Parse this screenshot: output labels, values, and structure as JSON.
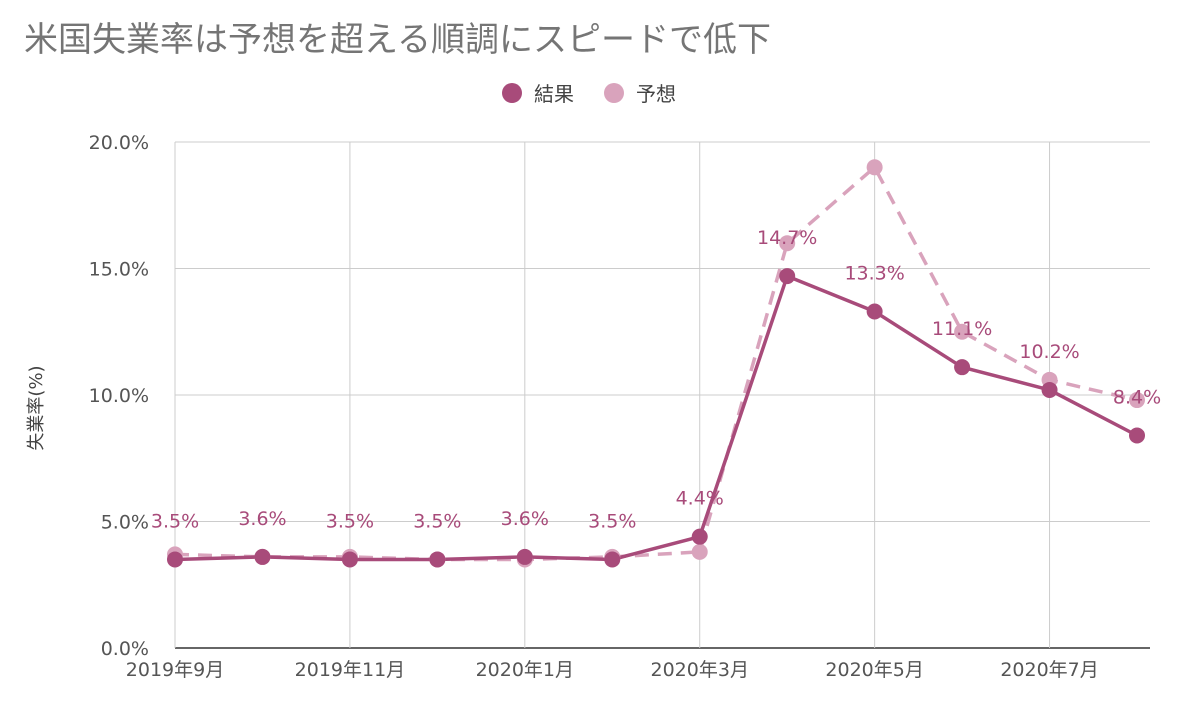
{
  "chart_data": {
    "type": "line",
    "title": "米国失業率は予想を超える順調にスピードで低下",
    "ylabel": "失業率(%)",
    "xlabel": "",
    "ylim": [
      0,
      20
    ],
    "y_ticks": [
      "0.0%",
      "5.0%",
      "10.0%",
      "15.0%",
      "20.0%"
    ],
    "y_tick_values": [
      0,
      5,
      10,
      15,
      20
    ],
    "categories": [
      "2019年9月",
      "2019年10月",
      "2019年11月",
      "2019年12月",
      "2020年1月",
      "2020年2月",
      "2020年3月",
      "2020年4月",
      "2020年5月",
      "2020年6月",
      "2020年7月",
      "2020年8月"
    ],
    "x_tick_labels": [
      "2019年9月",
      "",
      "2019年11月",
      "",
      "2020年1月",
      "",
      "2020年3月",
      "",
      "2020年5月",
      "",
      "2020年7月",
      ""
    ],
    "grid": true,
    "legend_position": "top-center",
    "series": [
      {
        "name": "結果",
        "color": "#a84b7a",
        "style": "solid",
        "values": [
          3.5,
          3.6,
          3.5,
          3.5,
          3.6,
          3.5,
          4.4,
          14.7,
          13.3,
          11.1,
          10.2,
          8.4
        ],
        "labels": [
          "3.5%",
          "3.6%",
          "3.5%",
          "3.5%",
          "3.6%",
          "3.5%",
          "4.4%",
          "14.7%",
          "13.3%",
          "11.1%",
          "10.2%",
          "8.4%"
        ]
      },
      {
        "name": "予想",
        "color": "#d9a3bc",
        "style": "dashed",
        "values": [
          3.7,
          3.6,
          3.6,
          3.5,
          3.5,
          3.6,
          3.8,
          16.0,
          19.0,
          12.5,
          10.6,
          9.8
        ]
      }
    ]
  }
}
